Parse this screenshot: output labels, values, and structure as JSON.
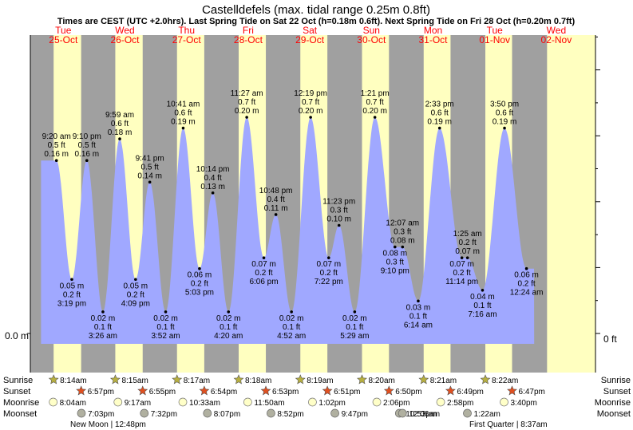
{
  "title": "Castelldefels (max. tidal range 0.25m 0.8ft)",
  "subtitle": "Times are CEST (UTC +2.0hrs). Last Spring Tide on Sat 22 Oct (h=0.18m 0.6ft). Next Spring Tide on Fri 28 Oct (h=0.20m 0.7ft)",
  "chart_data": {
    "type": "area",
    "title": "Castelldefels (max. tidal range 0.25m 0.8ft)",
    "ylabel_left": "0.0 m",
    "ylabel_right": "0 ft",
    "ylim_m": [
      0,
      0.25
    ],
    "days": [
      {
        "name": "Tue",
        "date": "25-Oct"
      },
      {
        "name": "Wed",
        "date": "26-Oct"
      },
      {
        "name": "Thu",
        "date": "27-Oct"
      },
      {
        "name": "Fri",
        "date": "28-Oct"
      },
      {
        "name": "Sat",
        "date": "29-Oct"
      },
      {
        "name": "Sun",
        "date": "30-Oct"
      },
      {
        "name": "Mon",
        "date": "31-Oct"
      },
      {
        "name": "Tue",
        "date": "01-Nov"
      },
      {
        "name": "Wed",
        "date": "02-Nov"
      }
    ],
    "tides": [
      {
        "time": "9:20 am",
        "m": 0.16,
        "ft": "0.5 ft",
        "mtxt": "0.16 m",
        "type": "high"
      },
      {
        "time": "3:19 pm",
        "m": 0.05,
        "ft": "0.2 ft",
        "mtxt": "0.05 m",
        "type": "low"
      },
      {
        "time": "9:10 pm",
        "m": 0.16,
        "ft": "0.5 ft",
        "mtxt": "0.16 m",
        "type": "high"
      },
      {
        "time": "3:26 am",
        "m": 0.02,
        "ft": "0.1 ft",
        "mtxt": "0.02 m",
        "type": "low"
      },
      {
        "time": "9:59 am",
        "m": 0.18,
        "ft": "0.6 ft",
        "mtxt": "0.18 m",
        "type": "high"
      },
      {
        "time": "4:09 pm",
        "m": 0.05,
        "ft": "0.2 ft",
        "mtxt": "0.05 m",
        "type": "low"
      },
      {
        "time": "9:41 pm",
        "m": 0.14,
        "ft": "0.5 ft",
        "mtxt": "0.14 m",
        "type": "high"
      },
      {
        "time": "3:52 am",
        "m": 0.02,
        "ft": "0.1 ft",
        "mtxt": "0.02 m",
        "type": "low"
      },
      {
        "time": "10:41 am",
        "m": 0.19,
        "ft": "0.6 ft",
        "mtxt": "0.19 m",
        "type": "high"
      },
      {
        "time": "5:03 pm",
        "m": 0.06,
        "ft": "0.2 ft",
        "mtxt": "0.06 m",
        "type": "low"
      },
      {
        "time": "10:14 pm",
        "m": 0.13,
        "ft": "0.4 ft",
        "mtxt": "0.13 m",
        "type": "high"
      },
      {
        "time": "4:20 am",
        "m": 0.02,
        "ft": "0.1 ft",
        "mtxt": "0.02 m",
        "type": "low"
      },
      {
        "time": "11:27 am",
        "m": 0.2,
        "ft": "0.7 ft",
        "mtxt": "0.20 m",
        "type": "high"
      },
      {
        "time": "6:06 pm",
        "m": 0.07,
        "ft": "0.2 ft",
        "mtxt": "0.07 m",
        "type": "low"
      },
      {
        "time": "10:48 pm",
        "m": 0.11,
        "ft": "0.4 ft",
        "mtxt": "0.11 m",
        "type": "high"
      },
      {
        "time": "4:52 am",
        "m": 0.02,
        "ft": "0.1 ft",
        "mtxt": "0.02 m",
        "type": "low"
      },
      {
        "time": "12:19 pm",
        "m": 0.2,
        "ft": "0.7 ft",
        "mtxt": "0.20 m",
        "type": "high"
      },
      {
        "time": "7:22 pm",
        "m": 0.07,
        "ft": "0.2 ft",
        "mtxt": "0.07 m",
        "type": "low"
      },
      {
        "time": "11:23 pm",
        "m": 0.1,
        "ft": "0.3 ft",
        "mtxt": "0.10 m",
        "type": "high"
      },
      {
        "time": "5:29 am",
        "m": 0.02,
        "ft": "0.1 ft",
        "mtxt": "0.02 m",
        "type": "low"
      },
      {
        "time": "1:21 pm",
        "m": 0.2,
        "ft": "0.7 ft",
        "mtxt": "0.20 m",
        "type": "high"
      },
      {
        "time": "9:10 pm",
        "m": 0.08,
        "ft": "0.3 ft",
        "mtxt": "0.08 m",
        "type": "low"
      },
      {
        "time": "12:07 am",
        "m": 0.08,
        "ft": "0.3 ft",
        "mtxt": "0.08 m",
        "type": "high"
      },
      {
        "time": "6:14 am",
        "m": 0.03,
        "ft": "0.1 ft",
        "mtxt": "0.03 m",
        "type": "low"
      },
      {
        "time": "2:33 pm",
        "m": 0.19,
        "ft": "0.6 ft",
        "mtxt": "0.19 m",
        "type": "high"
      },
      {
        "time": "11:14 pm",
        "m": 0.07,
        "ft": "0.2 ft",
        "mtxt": "0.07 m",
        "type": "low"
      },
      {
        "time": "1:25 am",
        "m": 0.07,
        "ft": "0.2 ft",
        "mtxt": "0.07 m",
        "type": "high"
      },
      {
        "time": "7:16 am",
        "m": 0.04,
        "ft": "0.1 ft",
        "mtxt": "0.04 m",
        "type": "low"
      },
      {
        "time": "3:50 pm",
        "m": 0.19,
        "ft": "0.6 ft",
        "mtxt": "0.19 m",
        "type": "high"
      },
      {
        "time": "12:24 am",
        "m": 0.06,
        "ft": "0.2 ft",
        "mtxt": "0.06 m",
        "type": "low"
      }
    ],
    "astro": {
      "labels": {
        "sunrise": "Sunrise",
        "sunset": "Sunset",
        "moonrise": "Moonrise",
        "moonset": "Moonset"
      },
      "sunrise": [
        "8:14am",
        "8:15am",
        "8:17am",
        "8:18am",
        "8:19am",
        "8:20am",
        "8:21am",
        "8:22am"
      ],
      "sunset": [
        "6:57pm",
        "6:55pm",
        "6:54pm",
        "6:53pm",
        "6:51pm",
        "6:50pm",
        "6:49pm",
        "6:47pm"
      ],
      "moonrise": [
        "8:04am",
        "9:17am",
        "10:33am",
        "11:50am",
        "1:02pm",
        "2:06pm",
        "2:58pm",
        "3:40pm"
      ],
      "moonset": [
        "7:03pm",
        "7:32pm",
        "8:07pm",
        "8:52pm",
        "9:47pm",
        "10:53pm",
        "12:06am",
        "1:22am"
      ],
      "moon_phases": [
        "New Moon | 12:48pm",
        "First Quarter | 8:37am"
      ]
    },
    "colors": {
      "night": "#a0a0a0",
      "day": "#ffffc0",
      "water": "#a0a8ff",
      "sunrise": "#b8b040",
      "sunset": "#e05020",
      "moonrise": "#ffffc8",
      "moonset": "#b0b0a0",
      "dayheader": "#ff0000"
    }
  }
}
